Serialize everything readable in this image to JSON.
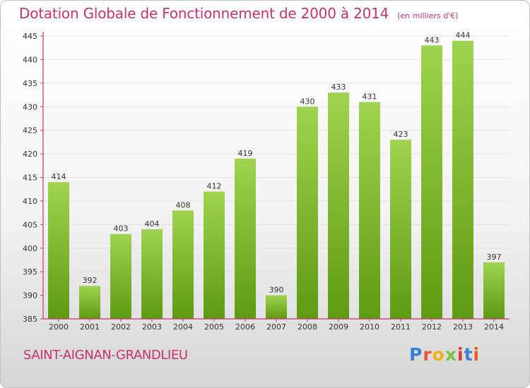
{
  "header": {
    "title": "Dotation Globale de Fonctionnement de 2000 à 2014",
    "subtitle": "(en milliers d'€)"
  },
  "footer": {
    "commune": "SAINT-AIGNAN-GRANDLIEU",
    "brand": "Proxiti",
    "brand_colors": [
      "#3a7fd5",
      "#e85a2a",
      "#f2b21b",
      "#7cc242",
      "#e0352f",
      "#3a7fd5",
      "#e85a2a"
    ]
  },
  "colors": {
    "title": "#c8326e",
    "bar_light": "#9fd350",
    "bar_dark": "#5e9a12",
    "axis": "#c8326e",
    "grid": "#e2e2e2"
  },
  "chart_data": {
    "type": "bar",
    "title": "Dotation Globale de Fonctionnement de 2000 à 2014",
    "xlabel": "",
    "ylabel": "(en milliers d'€)",
    "categories": [
      "2000",
      "2001",
      "2002",
      "2003",
      "2004",
      "2005",
      "2006",
      "2007",
      "2008",
      "2009",
      "2010",
      "2011",
      "2012",
      "2013",
      "2014"
    ],
    "values": [
      414,
      392,
      403,
      404,
      408,
      412,
      419,
      390,
      430,
      433,
      431,
      423,
      443,
      444,
      397
    ],
    "ylim": [
      385,
      445
    ],
    "yticks": [
      385,
      390,
      395,
      400,
      405,
      410,
      415,
      420,
      425,
      430,
      435,
      440,
      445
    ],
    "grid": true,
    "data_labels": true
  }
}
